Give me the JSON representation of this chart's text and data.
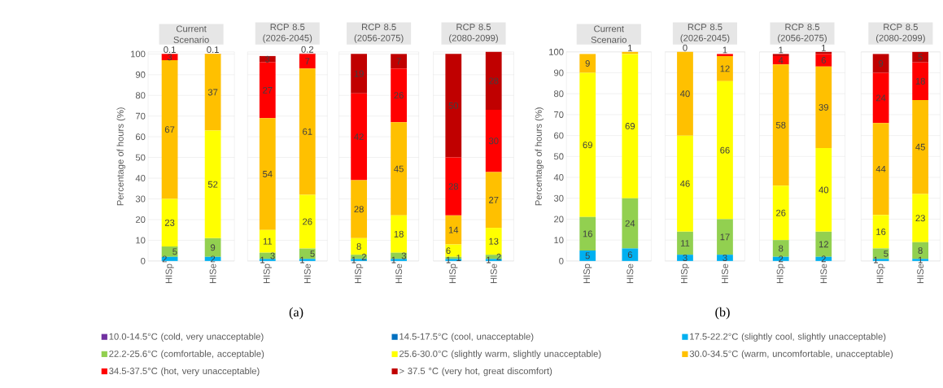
{
  "chart_data": [
    {
      "type": "bar",
      "title": "Current Scenario",
      "categories": [
        "HISp",
        "HISe"
      ],
      "stacked": true,
      "ylabel": "Percentage of hours (%)",
      "ylim": [
        0,
        101
      ],
      "yticks": [
        0,
        10,
        20,
        30,
        40,
        50,
        60,
        70,
        80,
        90,
        100
      ],
      "grid": "y",
      "legend": "bottom",
      "series": [
        {
          "name": "10.0-14.5°C (cold, very unacceptable)",
          "color": "#7030a0",
          "values": [
            null,
            null
          ]
        },
        {
          "name": "14.5-17.5°C (cool, unacceptable)",
          "color": "#0070c0",
          "values": [
            null,
            null
          ]
        },
        {
          "name": "17.5-22.2°C (slightly cool, slightly unacceptable)",
          "color": "#00b0f0",
          "values": [
            2,
            2
          ],
          "value_labels": [
            "2",
            "2"
          ]
        },
        {
          "name": "22.2-25.6°C (comfortable, acceptable)",
          "color": "#92d050",
          "values": [
            5,
            9
          ],
          "value_labels": [
            "5",
            "9"
          ]
        },
        {
          "name": "25.6-30.0°C (slightly warm, slightly unacceptable)",
          "color": "#ffff00",
          "values": [
            23,
            52
          ],
          "value_labels": [
            "23",
            "52"
          ]
        },
        {
          "name": "30.0-34.5°C (warm, uncomfortable, unacceptable)",
          "color": "#ffc000",
          "values": [
            67,
            37
          ],
          "value_labels": [
            "67",
            "37"
          ]
        },
        {
          "name": "34.5-37.5°C (hot, very unacceptable)",
          "color": "#ff0000",
          "values": [
            3,
            0.1
          ],
          "value_labels": [
            "3",
            "0.1"
          ]
        },
        {
          "name": "> 37.5 °C (very hot, great discomfort)",
          "color": "#c00000",
          "values": [
            0.1,
            null
          ],
          "value_labels": [
            "0.1",
            null
          ]
        }
      ]
    },
    {
      "type": "bar",
      "title": "RCP 8.5 (2026-2045)",
      "categories": [
        "HISp",
        "HISe"
      ],
      "stacked": true,
      "ylim": [
        0,
        101
      ],
      "yticks": [
        0,
        10,
        20,
        30,
        40,
        50,
        60,
        70,
        80,
        90,
        100
      ],
      "grid": "y",
      "tick_labels": "x",
      "annotations": [
        "(a)"
      ],
      "series": [
        {
          "color": "#00b0f0",
          "values": [
            1,
            1
          ],
          "value_labels": [
            "1",
            "1"
          ]
        },
        {
          "color": "#92d050",
          "values": [
            3,
            5
          ],
          "value_labels": [
            "3",
            "5"
          ]
        },
        {
          "color": "#ffff00",
          "values": [
            11,
            26
          ],
          "value_labels": [
            "11",
            "26"
          ]
        },
        {
          "color": "#ffc000",
          "values": [
            54,
            61
          ],
          "value_labels": [
            "54",
            "61"
          ]
        },
        {
          "color": "#ff0000",
          "values": [
            27,
            7
          ],
          "value_labels": [
            "27",
            "7"
          ]
        },
        {
          "color": "#c00000",
          "values": [
            3,
            0.2
          ],
          "value_labels": [
            "3",
            "0.2"
          ]
        }
      ]
    },
    {
      "type": "bar",
      "title": "RCP 8.5 (2056-2075)",
      "categories": [
        "HISp",
        "HISe"
      ],
      "stacked": true,
      "ylim": [
        0,
        101
      ],
      "yticks": [
        0,
        10,
        20,
        30,
        40,
        50,
        60,
        70,
        80,
        90,
        100
      ],
      "grid": "y",
      "tick_labels": "x",
      "series": [
        {
          "color": "#00b0f0",
          "values": [
            1,
            1
          ],
          "value_labels": [
            "1",
            "1"
          ]
        },
        {
          "color": "#92d050",
          "values": [
            2,
            3
          ],
          "value_labels": [
            "2",
            "3"
          ]
        },
        {
          "color": "#ffff00",
          "values": [
            8,
            18
          ],
          "value_labels": [
            "8",
            "18"
          ]
        },
        {
          "color": "#ffc000",
          "values": [
            28,
            45
          ],
          "value_labels": [
            "28",
            "45"
          ]
        },
        {
          "color": "#ff0000",
          "values": [
            42,
            26
          ],
          "value_labels": [
            "42",
            "26"
          ]
        },
        {
          "color": "#c00000",
          "values": [
            19,
            7
          ],
          "value_labels": [
            "19",
            "7"
          ]
        }
      ]
    },
    {
      "type": "bar",
      "title": "RCP 8.5 (2080-2099)",
      "categories": [
        "HISp",
        "HISe"
      ],
      "stacked": true,
      "ylim": [
        0,
        101
      ],
      "yticks": [
        0,
        10,
        20,
        30,
        40,
        50,
        60,
        70,
        80,
        90,
        100
      ],
      "grid": "y",
      "tick_labels": "x",
      "series": [
        {
          "color": "#00b0f0",
          "values": [
            1,
            1
          ],
          "value_labels": [
            "1",
            "1"
          ]
        },
        {
          "color": "#92d050",
          "values": [
            1,
            2
          ],
          "value_labels": [
            "1",
            "2"
          ]
        },
        {
          "color": "#ffff00",
          "values": [
            6,
            13
          ],
          "value_labels": [
            "6",
            "13"
          ]
        },
        {
          "color": "#ffc000",
          "values": [
            14,
            27
          ],
          "value_labels": [
            "14",
            "27"
          ]
        },
        {
          "color": "#ff0000",
          "values": [
            28,
            30
          ],
          "value_labels": [
            "28",
            "30"
          ]
        },
        {
          "color": "#c00000",
          "values": [
            50,
            28
          ],
          "value_labels": [
            "50",
            "28"
          ]
        }
      ]
    },
    {
      "type": "bar",
      "title": "Current Scenario",
      "categories": [
        "HISp",
        "HISe"
      ],
      "stacked": true,
      "ylabel": "Percentage of hours (%)",
      "ylim": [
        0,
        100
      ],
      "yticks": [
        0,
        10,
        20,
        30,
        40,
        50,
        60,
        70,
        80,
        90,
        100
      ],
      "grid": "y",
      "series": [
        {
          "color": "#00b0f0",
          "values": [
            5,
            6
          ],
          "value_labels": [
            "5",
            "6"
          ]
        },
        {
          "color": "#92d050",
          "values": [
            16,
            24
          ],
          "value_labels": [
            "16",
            "24"
          ]
        },
        {
          "color": "#ffff00",
          "values": [
            69,
            69
          ],
          "value_labels": [
            "69",
            "69"
          ]
        },
        {
          "color": "#ffc000",
          "values": [
            9,
            1
          ],
          "value_labels": [
            "9",
            "1"
          ]
        }
      ]
    },
    {
      "type": "bar",
      "title": "RCP 8.5 (2026-2045)",
      "categories": [
        "HISp",
        "HISe"
      ],
      "stacked": true,
      "ylim": [
        0,
        100
      ],
      "yticks": [
        0,
        10,
        20,
        30,
        40,
        50,
        60,
        70,
        80,
        90,
        100
      ],
      "grid": "y",
      "tick_labels": "x",
      "annotations": [
        "(b)"
      ],
      "series": [
        {
          "color": "#00b0f0",
          "values": [
            3,
            3
          ],
          "value_labels": [
            "3",
            "3"
          ]
        },
        {
          "color": "#92d050",
          "values": [
            11,
            17
          ],
          "value_labels": [
            "11",
            "17"
          ]
        },
        {
          "color": "#ffff00",
          "values": [
            46,
            66
          ],
          "value_labels": [
            "46",
            "66"
          ]
        },
        {
          "color": "#ffc000",
          "values": [
            40,
            12
          ],
          "value_labels": [
            "40",
            "12"
          ]
        },
        {
          "color": "#ff0000",
          "values": [
            0,
            1
          ],
          "value_labels": [
            "0",
            "1"
          ]
        }
      ]
    },
    {
      "type": "bar",
      "title": "RCP 8.5 (2056-2075)",
      "categories": [
        "HISp",
        "HISe"
      ],
      "stacked": true,
      "ylim": [
        0,
        100
      ],
      "yticks": [
        0,
        10,
        20,
        30,
        40,
        50,
        60,
        70,
        80,
        90,
        100
      ],
      "grid": "y",
      "tick_labels": "x",
      "series": [
        {
          "color": "#00b0f0",
          "values": [
            2,
            2
          ],
          "value_labels": [
            "2",
            "2"
          ]
        },
        {
          "color": "#92d050",
          "values": [
            8,
            12
          ],
          "value_labels": [
            "8",
            "12"
          ]
        },
        {
          "color": "#ffff00",
          "values": [
            26,
            40
          ],
          "value_labels": [
            "26",
            "40"
          ]
        },
        {
          "color": "#ffc000",
          "values": [
            58,
            39
          ],
          "value_labels": [
            "58",
            "39"
          ]
        },
        {
          "color": "#ff0000",
          "values": [
            4,
            6
          ],
          "value_labels": [
            "4",
            "6"
          ]
        },
        {
          "color": "#c00000",
          "values": [
            1,
            1
          ],
          "value_labels": [
            "1",
            "1"
          ]
        }
      ]
    },
    {
      "type": "bar",
      "title": "RCP 8.5 (2080-2099)",
      "categories": [
        "HISp",
        "HISe"
      ],
      "stacked": true,
      "ylim": [
        0,
        100
      ],
      "yticks": [
        0,
        10,
        20,
        30,
        40,
        50,
        60,
        70,
        80,
        90,
        100
      ],
      "grid": "y",
      "tick_labels": "x",
      "series": [
        {
          "color": "#00b0f0",
          "values": [
            1,
            1
          ],
          "value_labels": [
            "1",
            "1"
          ]
        },
        {
          "color": "#92d050",
          "values": [
            5,
            8
          ],
          "value_labels": [
            "5",
            "8"
          ]
        },
        {
          "color": "#ffff00",
          "values": [
            16,
            23
          ],
          "value_labels": [
            "16",
            "23"
          ]
        },
        {
          "color": "#ffc000",
          "values": [
            44,
            45
          ],
          "value_labels": [
            "44",
            "45"
          ]
        },
        {
          "color": "#ff0000",
          "values": [
            24,
            18
          ],
          "value_labels": [
            "24",
            "18"
          ]
        },
        {
          "color": "#c00000",
          "values": [
            9,
            5
          ],
          "value_labels": [
            "9",
            "5"
          ]
        }
      ]
    }
  ]
}
